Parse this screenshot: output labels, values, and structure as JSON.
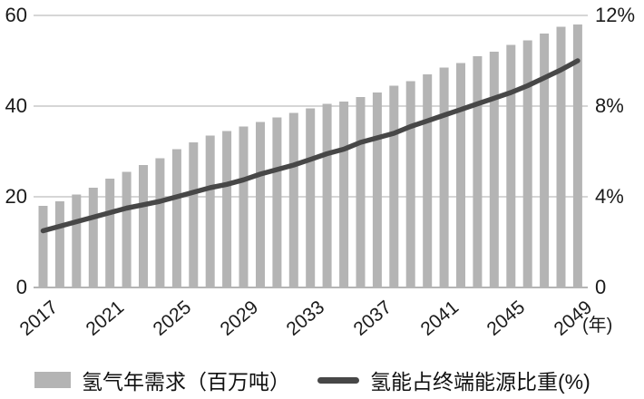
{
  "chart_data": {
    "type": "combo_bar_line",
    "title": "",
    "categories": [
      2017,
      2018,
      2019,
      2020,
      2021,
      2022,
      2023,
      2024,
      2025,
      2026,
      2027,
      2028,
      2029,
      2030,
      2031,
      2032,
      2033,
      2034,
      2035,
      2036,
      2037,
      2038,
      2039,
      2040,
      2041,
      2042,
      2043,
      2044,
      2045,
      2046,
      2047,
      2048,
      2049
    ],
    "x_tick_labels": [
      "2017",
      "2021",
      "2025",
      "2029",
      "2033",
      "2037",
      "2041",
      "2045",
      "2049"
    ],
    "x_axis_unit": "(年)",
    "series": [
      {
        "name": "氢气年需求（百万吨）",
        "type": "bar",
        "axis": "left",
        "color": "#b4b4b4",
        "values": [
          18,
          19,
          20.5,
          22,
          24,
          25.5,
          27,
          28.5,
          30.5,
          32,
          33.5,
          34.5,
          35.5,
          36.5,
          37.5,
          38.5,
          39.5,
          40.5,
          41,
          42,
          43,
          44.5,
          45.5,
          47,
          48.5,
          49.5,
          51,
          52,
          53.5,
          54.5,
          56,
          57.5,
          58
        ]
      },
      {
        "name": "氢能占终端能源比重(%)",
        "type": "line",
        "axis": "right",
        "color": "#474747",
        "values": [
          2.5,
          2.7,
          2.9,
          3.1,
          3.3,
          3.5,
          3.65,
          3.8,
          4.0,
          4.2,
          4.4,
          4.55,
          4.75,
          5.0,
          5.2,
          5.4,
          5.65,
          5.9,
          6.1,
          6.4,
          6.6,
          6.8,
          7.1,
          7.35,
          7.6,
          7.85,
          8.1,
          8.35,
          8.6,
          8.9,
          9.25,
          9.6,
          10.0
        ]
      }
    ],
    "left_axis": {
      "min": 0,
      "max": 60,
      "tick_labels": [
        "0",
        "20",
        "40",
        "60"
      ]
    },
    "right_axis": {
      "min": 0,
      "max": 12,
      "tick_labels": [
        "0",
        "4%",
        "8%",
        "12%"
      ]
    },
    "grid": true,
    "legend_position": "bottom",
    "colors": {
      "gridline": "#c9c9c9",
      "axis_line": "#b5b5b5",
      "text": "#1a1a1a"
    }
  }
}
